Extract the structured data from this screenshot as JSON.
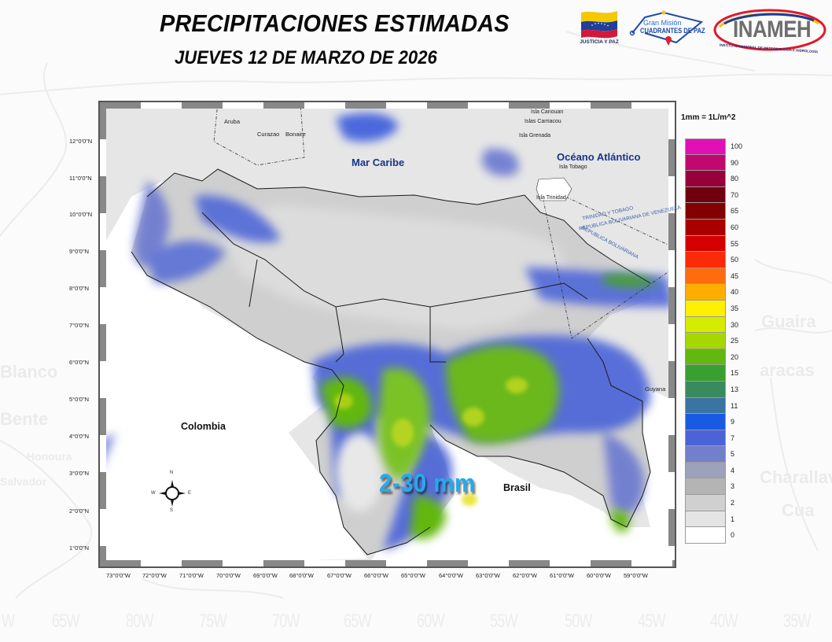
{
  "header": {
    "title": "PRECIPITACIONES ESTIMADAS",
    "subtitle": "JUEVES 12 DE MARZO DE 2026"
  },
  "logos": {
    "justicia_y_paz": "JUSTICIA Y PAZ",
    "gran_mision_line1": "Gran Misión",
    "gran_mision_line2": "CUADRANTES DE PAZ",
    "inameh": "INAMEH",
    "inameh_full": "INSTITUTO NACIONAL DE METEOROLOGÍA E HIDROLOGÍA"
  },
  "map": {
    "latitude_labels": [
      "12°0'0\"N",
      "11°0'0\"N",
      "10°0'0\"N",
      "9°0'0\"N",
      "8°0'0\"N",
      "7°0'0\"N",
      "6°0'0\"N",
      "5°0'0\"N",
      "4°0'0\"N",
      "3°0'0\"N",
      "2°0'0\"N",
      "1°0'0\"N"
    ],
    "longitude_labels": [
      "73°0'0\"W",
      "72°0'0\"W",
      "71°0'0\"W",
      "70°0'0\"W",
      "69°0'0\"W",
      "68°0'0\"W",
      "67°0'0\"W",
      "66°0'0\"W",
      "65°0'0\"W",
      "64°0'0\"W",
      "63°0'0\"W",
      "62°0'0\"W",
      "61°0'0\"W",
      "60°0'0\"W",
      "59°0'0\"W"
    ],
    "labels": {
      "mar_caribe": "Mar Caribe",
      "oceano_atlantico": "Océano Atlántico",
      "colombia": "Colombia",
      "brasil": "Brasil",
      "guyana": "Guyana",
      "aruba": "Aruba",
      "curazao": "Curazao",
      "bonaire": "Bonaire",
      "canouan": "Isla Canouan",
      "carriacou": "Islas Carriacou",
      "grenada": "Isla Grenada",
      "tobago": "Isla Tobago",
      "trinidad": "Isla Trinidad",
      "border_tt": "TRINIDAD Y TOBAGO",
      "border_ve": "REPUBLICA BOLIVARIANA DE VENEZUELA",
      "border_ve2": "REPUBLICA BOLIVARIANA"
    },
    "range_annotation": "2-30 mm",
    "compass": {
      "n": "N",
      "s": "S",
      "e": "E",
      "w": "W"
    }
  },
  "legend": {
    "unit": "1mm = 1L/m^2",
    "items": [
      {
        "value": "100",
        "color": "#e20fb4"
      },
      {
        "value": "90",
        "color": "#c0086e"
      },
      {
        "value": "80",
        "color": "#98003a"
      },
      {
        "value": "70",
        "color": "#700010"
      },
      {
        "value": "65",
        "color": "#820000"
      },
      {
        "value": "60",
        "color": "#a80000"
      },
      {
        "value": "55",
        "color": "#d40000"
      },
      {
        "value": "50",
        "color": "#fa2a0a"
      },
      {
        "value": "45",
        "color": "#ff6c10"
      },
      {
        "value": "40",
        "color": "#ffae00"
      },
      {
        "value": "35",
        "color": "#fff000"
      },
      {
        "value": "30",
        "color": "#d4ec00"
      },
      {
        "value": "25",
        "color": "#a6d800"
      },
      {
        "value": "20",
        "color": "#62b810"
      },
      {
        "value": "15",
        "color": "#38a030"
      },
      {
        "value": "13",
        "color": "#3a8a60"
      },
      {
        "value": "11",
        "color": "#3a74a0"
      },
      {
        "value": "9",
        "color": "#1a5ae2"
      },
      {
        "value": "7",
        "color": "#4a64d8"
      },
      {
        "value": "5",
        "color": "#7280cc"
      },
      {
        "value": "4",
        "color": "#9ca2ba"
      },
      {
        "value": "3",
        "color": "#b4b4b4"
      },
      {
        "value": "2",
        "color": "#d0d0d0"
      },
      {
        "value": "1",
        "color": "#e4e4e4"
      },
      {
        "value": "0",
        "color": "#ffffff"
      }
    ]
  },
  "background": {
    "lon_labels": [
      "W",
      "65W",
      "80W",
      "75W",
      "70W",
      "65W",
      "60W",
      "55W",
      "50W",
      "45W",
      "40W",
      "35W"
    ],
    "cities": [
      "Guaira",
      "aracas",
      "Charallav",
      "Cua",
      "Blanco",
      "Bente",
      "Honoura",
      "Salvador"
    ]
  }
}
